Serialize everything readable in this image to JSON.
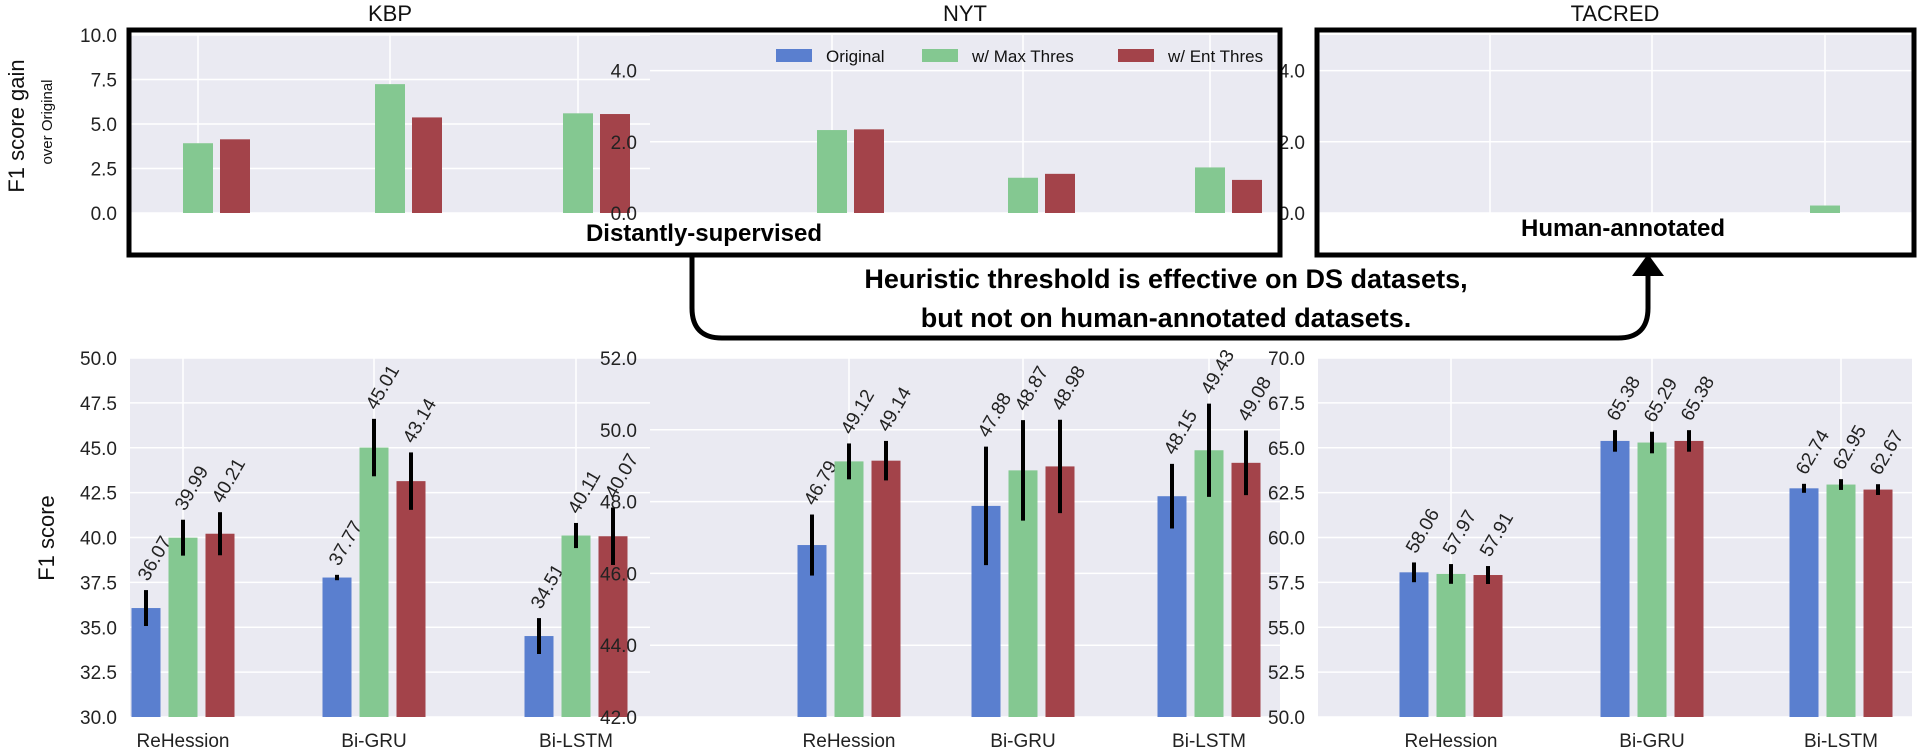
{
  "colors": {
    "original": "#5a7fcf",
    "max_thres": "#84c891",
    "ent_thres": "#a3434a",
    "panel_bg": "#eaeaf2",
    "grid": "#ffffff",
    "errorbar": "#000000"
  },
  "legend": [
    "Original",
    "w/ Max Thres",
    "w/ Ent Thres"
  ],
  "annotations": {
    "ds_label": "Distantly-supervised",
    "human_label": "Human-annotated",
    "message_line1": "Heuristic threshold is effective on DS datasets,",
    "message_line2": "but not on human-annotated datasets."
  },
  "chart_data": [
    {
      "type": "bar",
      "id": "kbp-gain",
      "title": "KBP",
      "ylabel": "F1 score gain",
      "ylabel_sub": "over Original",
      "categories": [
        "ReHession",
        "Bi-GRU",
        "Bi-LSTM"
      ],
      "ylim": [
        0,
        10
      ],
      "yticks": [
        "0.0",
        "2.5",
        "5.0",
        "7.5",
        "10.0"
      ],
      "series": [
        {
          "name": "w/ Max Thres",
          "values": [
            3.92,
            7.24,
            5.6
          ]
        },
        {
          "name": "w/ Ent Thres",
          "values": [
            4.14,
            5.37,
            5.56
          ]
        }
      ]
    },
    {
      "type": "bar",
      "id": "nyt-gain",
      "title": "NYT",
      "categories": [
        "ReHession",
        "Bi-GRU",
        "Bi-LSTM"
      ],
      "ylim": [
        0,
        5
      ],
      "yticks": [
        "0.0",
        "2.0",
        "4.0"
      ],
      "legend": "top",
      "series": [
        {
          "name": "w/ Max Thres",
          "values": [
            2.33,
            0.99,
            1.28
          ]
        },
        {
          "name": "w/ Ent Thres",
          "values": [
            2.35,
            1.1,
            0.93
          ]
        }
      ]
    },
    {
      "type": "bar",
      "id": "tacred-gain",
      "title": "TACRED",
      "categories": [
        "ReHession",
        "Bi-GRU",
        "Bi-LSTM"
      ],
      "ylim": [
        0,
        5
      ],
      "yticks": [
        "0.0",
        "2.0",
        "4.0"
      ],
      "series": [
        {
          "name": "w/ Max Thres",
          "values": [
            0,
            0,
            0.21
          ]
        },
        {
          "name": "w/ Ent Thres",
          "values": [
            0,
            0,
            0
          ]
        }
      ]
    },
    {
      "type": "bar",
      "id": "kbp-f1",
      "ylabel": "F1 score",
      "categories": [
        "ReHession",
        "Bi-GRU",
        "Bi-LSTM"
      ],
      "ylim": [
        30,
        50
      ],
      "yticks": [
        "30.0",
        "32.5",
        "35.0",
        "37.5",
        "40.0",
        "42.5",
        "45.0",
        "47.5",
        "50.0"
      ],
      "series": [
        {
          "name": "Original",
          "values": [
            36.07,
            37.77,
            34.51
          ],
          "labels": [
            "36.07",
            "37.77",
            "34.51"
          ],
          "err": [
            1.0,
            0.15,
            1.0
          ]
        },
        {
          "name": "w/ Max Thres",
          "values": [
            39.99,
            45.01,
            40.11
          ],
          "labels": [
            "39.99",
            "45.01",
            "40.11"
          ],
          "err": [
            1.0,
            1.6,
            0.7
          ]
        },
        {
          "name": "w/ Ent Thres",
          "values": [
            40.21,
            43.14,
            40.07
          ],
          "labels": [
            "40.21",
            "43.14",
            "40.07"
          ],
          "err": [
            1.2,
            1.6,
            1.6
          ]
        }
      ]
    },
    {
      "type": "bar",
      "id": "nyt-f1",
      "categories": [
        "ReHession",
        "Bi-GRU",
        "Bi-LSTM"
      ],
      "ylim": [
        42,
        52
      ],
      "yticks": [
        "42.0",
        "44.0",
        "46.0",
        "48.0",
        "50.0",
        "52.0"
      ],
      "series": [
        {
          "name": "Original",
          "values": [
            46.79,
            47.88,
            48.15
          ],
          "labels": [
            "46.79",
            "47.88",
            "48.15"
          ],
          "err": [
            0.85,
            1.65,
            0.9
          ]
        },
        {
          "name": "w/ Max Thres",
          "values": [
            49.12,
            48.87,
            49.43
          ],
          "labels": [
            "49.12",
            "48.87",
            "49.43"
          ],
          "err": [
            0.5,
            1.4,
            1.3
          ]
        },
        {
          "name": "w/ Ent Thres",
          "values": [
            49.14,
            48.98,
            49.08
          ],
          "labels": [
            "49.14",
            "48.98",
            "49.08"
          ],
          "err": [
            0.55,
            1.3,
            0.9
          ]
        }
      ]
    },
    {
      "type": "bar",
      "id": "tacred-f1",
      "categories": [
        "ReHession",
        "Bi-GRU",
        "Bi-LSTM"
      ],
      "ylim": [
        50,
        70
      ],
      "yticks": [
        "50.0",
        "52.5",
        "55.0",
        "57.5",
        "60.0",
        "62.5",
        "65.0",
        "67.5",
        "70.0"
      ],
      "series": [
        {
          "name": "Original",
          "values": [
            58.06,
            65.38,
            62.74
          ],
          "labels": [
            "58.06",
            "65.38",
            "62.74"
          ],
          "err": [
            0.55,
            0.6,
            0.25
          ]
        },
        {
          "name": "w/ Max Thres",
          "values": [
            57.97,
            65.29,
            62.95
          ],
          "labels": [
            "57.97",
            "65.29",
            "62.95"
          ],
          "err": [
            0.55,
            0.6,
            0.3
          ]
        },
        {
          "name": "w/ Ent Thres",
          "values": [
            57.91,
            65.38,
            62.67
          ],
          "labels": [
            "57.91",
            "65.38",
            "62.67"
          ],
          "err": [
            0.5,
            0.6,
            0.3
          ]
        }
      ]
    }
  ]
}
